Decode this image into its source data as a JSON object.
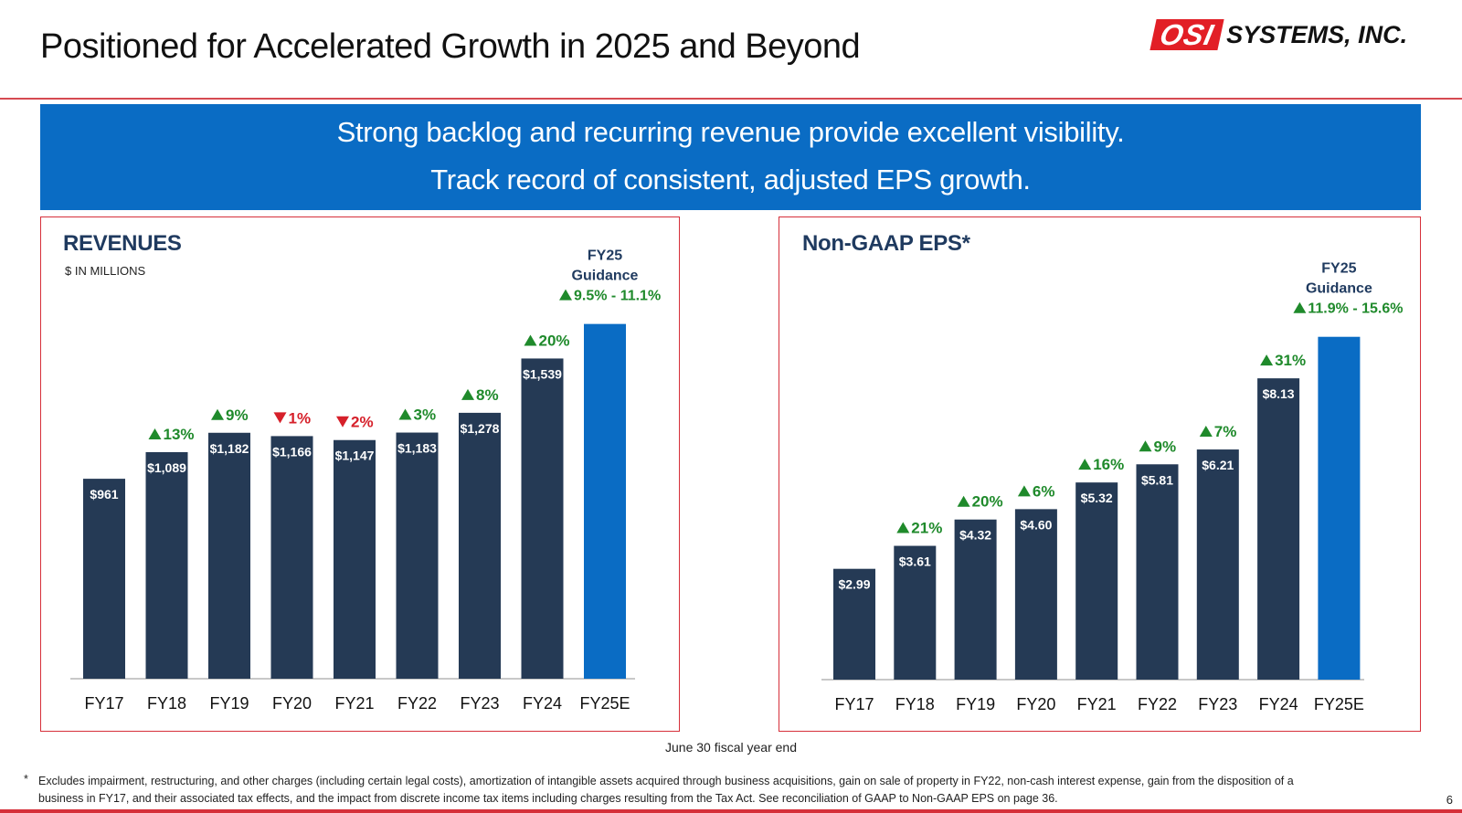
{
  "header": {
    "title": "Positioned for Accelerated Growth in 2025 and Beyond",
    "logo_mark": "OSI",
    "logo_text": "SYSTEMS, INC."
  },
  "banner": {
    "line1": "Strong backlog and recurring revenue provide excellent visibility.",
    "line2": "Track record of consistent, adjusted EPS growth."
  },
  "colors": {
    "bar": "#253a55",
    "guidance_bar": "#0a6cc4",
    "up": "#1f8a2b",
    "down": "#d6202a",
    "frame": "#d6303a"
  },
  "chart_data": [
    {
      "type": "bar",
      "title": "REVENUES",
      "subtitle": "$ IN MILLIONS",
      "categories": [
        "FY17",
        "FY18",
        "FY19",
        "FY20",
        "FY21",
        "FY22",
        "FY23",
        "FY24",
        "FY25E"
      ],
      "values": [
        961,
        1089,
        1182,
        1166,
        1147,
        1183,
        1278,
        1539,
        1705
      ],
      "value_labels": [
        "$961",
        "$1,089",
        "$1,182",
        "$1,166",
        "$1,147",
        "$1,183",
        "$1,278",
        "$1,539",
        ""
      ],
      "growth_labels": [
        "",
        "13%",
        "9%",
        "1%",
        "2%",
        "3%",
        "8%",
        "20%",
        ""
      ],
      "growth_direction": [
        "",
        "up",
        "up",
        "down",
        "down",
        "up",
        "up",
        "up",
        ""
      ],
      "guidance": {
        "title": "FY25",
        "subtitle": "Guidance",
        "range": "9.5% - 11.1%",
        "direction": "up"
      },
      "ylim": [
        0,
        1800
      ],
      "grid": false
    },
    {
      "type": "bar",
      "title": "Non-GAAP EPS*",
      "subtitle": "",
      "categories": [
        "FY17",
        "FY18",
        "FY19",
        "FY20",
        "FY21",
        "FY22",
        "FY23",
        "FY24",
        "FY25E"
      ],
      "values": [
        2.99,
        3.61,
        4.32,
        4.6,
        5.32,
        5.81,
        6.21,
        8.13,
        9.25
      ],
      "value_labels": [
        "$2.99",
        "$3.61",
        "$4.32",
        "$4.60",
        "$5.32",
        "$5.81",
        "$6.21",
        "$8.13",
        ""
      ],
      "growth_labels": [
        "",
        "21%",
        "20%",
        "6%",
        "16%",
        "9%",
        "7%",
        "31%",
        ""
      ],
      "growth_direction": [
        "",
        "up",
        "up",
        "up",
        "up",
        "up",
        "up",
        "up",
        ""
      ],
      "guidance": {
        "title": "FY25",
        "subtitle": "Guidance",
        "range": "11.9% - 15.6%",
        "direction": "up"
      },
      "ylim": [
        0,
        10.5
      ],
      "grid": false
    }
  ],
  "footer": {
    "fiscal_note": "June 30 fiscal year end",
    "footnote_mark": "*",
    "footnote": "Excludes impairment, restructuring, and other charges (including certain legal costs), amortization of intangible assets acquired through business acquisitions, gain on sale of property in FY22, non-cash interest expense, gain from the disposition of a business in FY17, and their associated tax effects, and the impact from discrete income tax items including charges resulting from the Tax Act. See reconciliation of GAAP to Non-GAAP EPS on page 36.",
    "page_number": "6"
  }
}
